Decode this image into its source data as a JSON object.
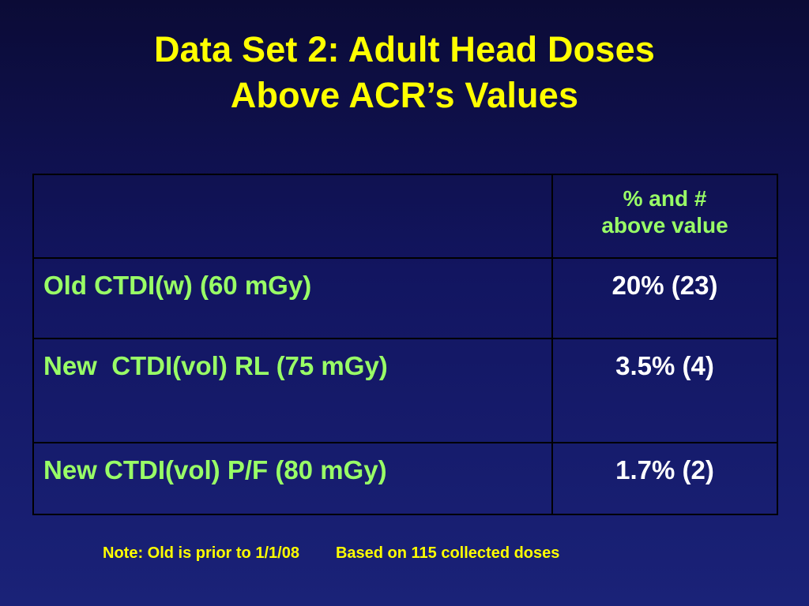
{
  "slide": {
    "title_line1": "Data Set 2: Adult Head Doses",
    "title_line2": "Above ACR’s Values"
  },
  "table": {
    "header": {
      "label": "",
      "value_line1": "% and #",
      "value_line2": "above value"
    },
    "rows": [
      {
        "label": "Old CTDI(w) (60 mGy)",
        "value": "20% (23)"
      },
      {
        "label": "New  CTDI(vol) RL (75 mGy)",
        "value": "3.5% (4)"
      },
      {
        "label": "New CTDI(vol) P/F (80 mGy)",
        "value": "1.7% (2)"
      }
    ]
  },
  "footer": {
    "note_left": "Note: Old is prior to 1/1/08",
    "note_right": "Based on 115 collected doses"
  },
  "colors": {
    "background": "#121560",
    "title": "#ffff00",
    "labels": "#99ff66",
    "values": "#ffffff",
    "border": "#000000"
  }
}
